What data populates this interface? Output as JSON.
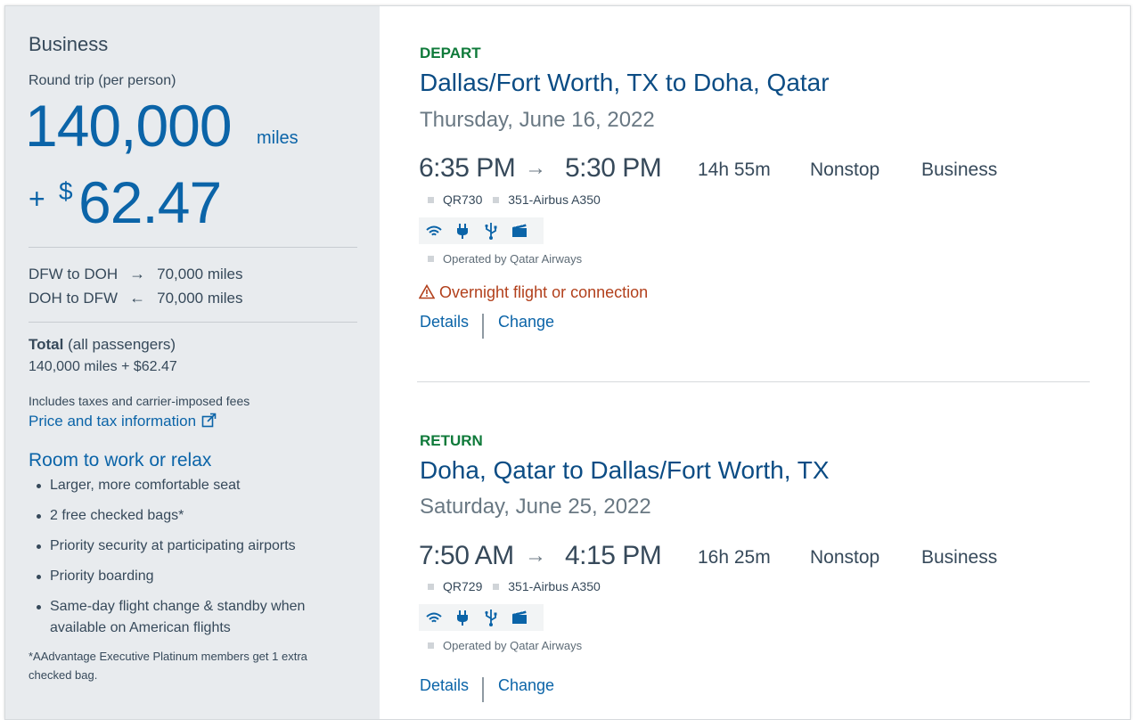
{
  "summary": {
    "cabin": "Business",
    "trip_type": "Round trip (per person)",
    "miles": "140,000",
    "miles_unit": "miles",
    "plus": "+",
    "currency_symbol": "$",
    "cash": "62.47",
    "segments": [
      {
        "from_to": "DFW to DOH",
        "arrow": "→",
        "miles": "70,000 miles"
      },
      {
        "from_to": "DOH to DFW",
        "arrow": "←",
        "miles": "70,000 miles"
      }
    ],
    "total_label": "Total",
    "total_suffix": "(all passengers)",
    "total_value": "140,000 miles + $62.47",
    "includes": "Includes taxes and carrier-imposed fees",
    "price_link": "Price and tax information",
    "room_title": "Room to work or relax",
    "benefits": [
      "Larger, more comfortable seat",
      "2 free checked bags*",
      "Priority security at participating airports",
      "Priority boarding",
      "Same-day flight change & standby when available on American flights"
    ],
    "footnote": "*AAdvantage Executive Platinum members get 1 extra checked bag."
  },
  "depart": {
    "label": "DEPART",
    "route": "Dallas/Fort Worth, TX to Doha, Qatar",
    "date": "Thursday, June 16, 2022",
    "dep_time": "6:35 PM",
    "arrow": "→",
    "arr_time": "5:30 PM",
    "duration": "14h 55m",
    "stops": "Nonstop",
    "cabin": "Business",
    "flight_no": "QR730",
    "aircraft": "351-Airbus A350",
    "amenities": [
      "wifi-icon",
      "power-icon",
      "usb-icon",
      "entertainment-icon"
    ],
    "operated_by": "Operated by Qatar Airways",
    "warning": "Overnight flight or connection",
    "details": "Details",
    "change": "Change"
  },
  "return": {
    "label": "RETURN",
    "route": "Doha, Qatar to Dallas/Fort Worth, TX",
    "date": "Saturday, June 25, 2022",
    "dep_time": "7:50 AM",
    "arrow": "→",
    "arr_time": "4:15 PM",
    "duration": "16h 25m",
    "stops": "Nonstop",
    "cabin": "Business",
    "flight_no": "QR729",
    "aircraft": "351-Airbus A350",
    "amenities": [
      "wifi-icon",
      "power-icon",
      "usb-icon",
      "entertainment-icon"
    ],
    "operated_by": "Operated by Qatar Airways",
    "details": "Details",
    "change": "Change"
  },
  "colors": {
    "accent_blue": "#0b64a8",
    "route_blue": "#0b4c84",
    "label_green": "#0f7a3a",
    "warning_red": "#b2401c",
    "panel_gray": "#e8ebee"
  }
}
